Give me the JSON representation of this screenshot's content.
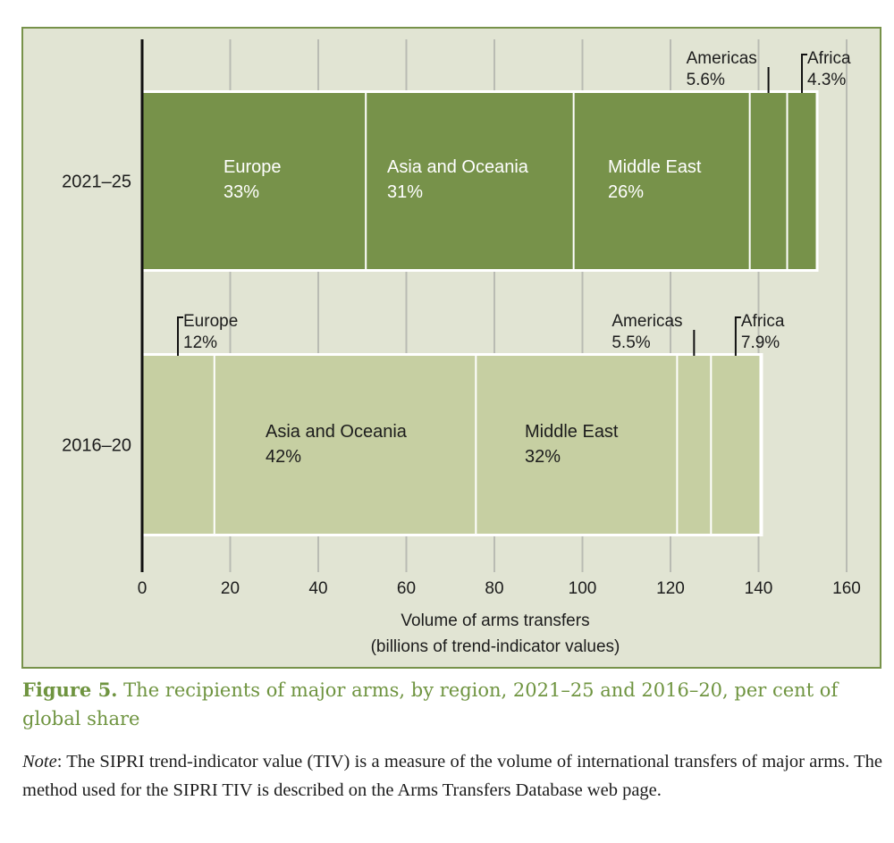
{
  "chart_data": {
    "type": "bar",
    "orientation": "horizontal",
    "stacked": true,
    "title": "The recipients of major arms, by region, 2021–25 and 2016–20, per cent of global share",
    "xlabel": "Volume of arms transfers",
    "xlabel_sub": "(billions of trend-indicator values)",
    "ylabel": "",
    "xlim": [
      0,
      160
    ],
    "xticks": [
      0,
      20,
      40,
      60,
      80,
      100,
      120,
      140,
      160
    ],
    "grid": true,
    "categories": [
      "2021–25",
      "2016–20"
    ],
    "series_order": [
      "Europe",
      "Asia and Oceania",
      "Middle East",
      "Americas",
      "Africa"
    ],
    "bars": [
      {
        "period": "2021–25",
        "color": "#77924a",
        "label_color": "#ffffff",
        "total": 153,
        "segments": [
          {
            "region": "Europe",
            "share_label": "33%",
            "value": 50.8,
            "label_position": "inside"
          },
          {
            "region": "Asia and Oceania",
            "share_label": "31%",
            "value": 47.2,
            "label_position": "inside"
          },
          {
            "region": "Middle East",
            "share_label": "26%",
            "value": 40.0,
            "label_position": "inside"
          },
          {
            "region": "Americas",
            "share_label": "5.6%",
            "value": 8.5,
            "label_position": "above-left"
          },
          {
            "region": "Africa",
            "share_label": "4.3%",
            "value": 6.7,
            "label_position": "above-right"
          }
        ]
      },
      {
        "period": "2016–20",
        "color": "#c6cfa2",
        "label_color": "#1c1c1c",
        "total": 140.4,
        "segments": [
          {
            "region": "Europe",
            "share_label": "12%",
            "value": 16.4,
            "label_position": "above-right"
          },
          {
            "region": "Asia and Oceania",
            "share_label": "42%",
            "value": 59.4,
            "label_position": "inside"
          },
          {
            "region": "Middle East",
            "share_label": "32%",
            "value": 45.7,
            "label_position": "inside"
          },
          {
            "region": "Americas",
            "share_label": "5.5%",
            "value": 7.7,
            "label_position": "above-left"
          },
          {
            "region": "Africa",
            "share_label": "7.9%",
            "value": 11.2,
            "label_position": "above-right"
          }
        ]
      }
    ],
    "colors": {
      "frame_background": "#e1e4d3",
      "frame_border": "#77924a",
      "gridline": "#b9bbb3",
      "axis": "#111111"
    }
  },
  "caption": {
    "label": "Figure 5.",
    "text": " The recipients of major arms, by region, 2021–25 and 2016–20, per cent of global share",
    "color": "#6f9440"
  },
  "note": {
    "label": "Note",
    "text": ": The SIPRI trend-indicator value (TIV) is a measure of the volume of international transfers of major arms. The method used for the SIPRI TIV is described on the Arms Transfers Database web page."
  }
}
